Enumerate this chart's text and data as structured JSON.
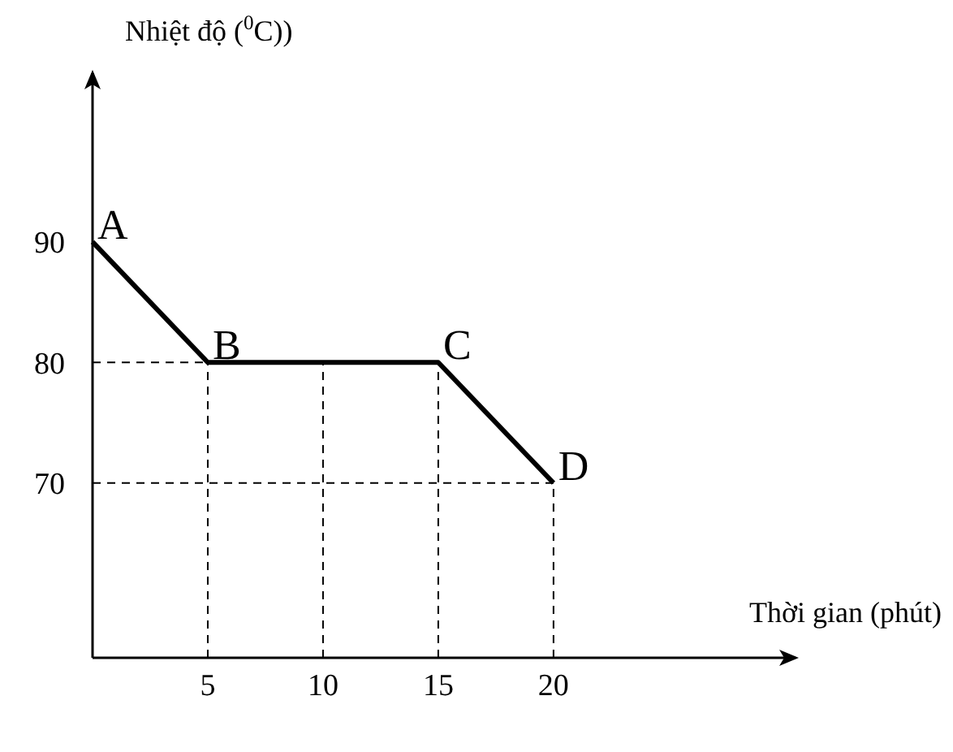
{
  "chart_data": {
    "type": "line",
    "xlabel": "Thời gian (phút)",
    "ylabel": "Nhiệt độ ($^{0}$C))",
    "x": [
      0,
      5,
      15,
      20
    ],
    "values": [
      90,
      80,
      80,
      70
    ],
    "color": "#000000",
    "marker": "none",
    "line_style": "solid",
    "xlim": [
      0,
      30.5
    ],
    "ylim": [
      55.5,
      104
    ],
    "xticks": [
      5,
      10,
      15,
      20
    ],
    "yticks": [
      70,
      80,
      90
    ],
    "ref_lines": [
      {
        "axis": "x",
        "value": 5,
        "line_style": "dashed"
      },
      {
        "axis": "x",
        "value": 10,
        "line_style": "dashed"
      },
      {
        "axis": "x",
        "value": 15,
        "line_style": "dashed"
      },
      {
        "axis": "x",
        "value": 20,
        "line_style": "dashed"
      },
      {
        "axis": "y",
        "value": 80,
        "line_style": "dashed"
      },
      {
        "axis": "y",
        "value": 70,
        "line_style": "dashed"
      }
    ],
    "annotations": [
      {
        "text": "A",
        "x": 0,
        "y": 90
      },
      {
        "text": "B",
        "x": 5,
        "y": 80
      },
      {
        "text": "C",
        "x": 15,
        "y": 80
      },
      {
        "text": "D",
        "x": 20,
        "y": 70
      }
    ]
  }
}
